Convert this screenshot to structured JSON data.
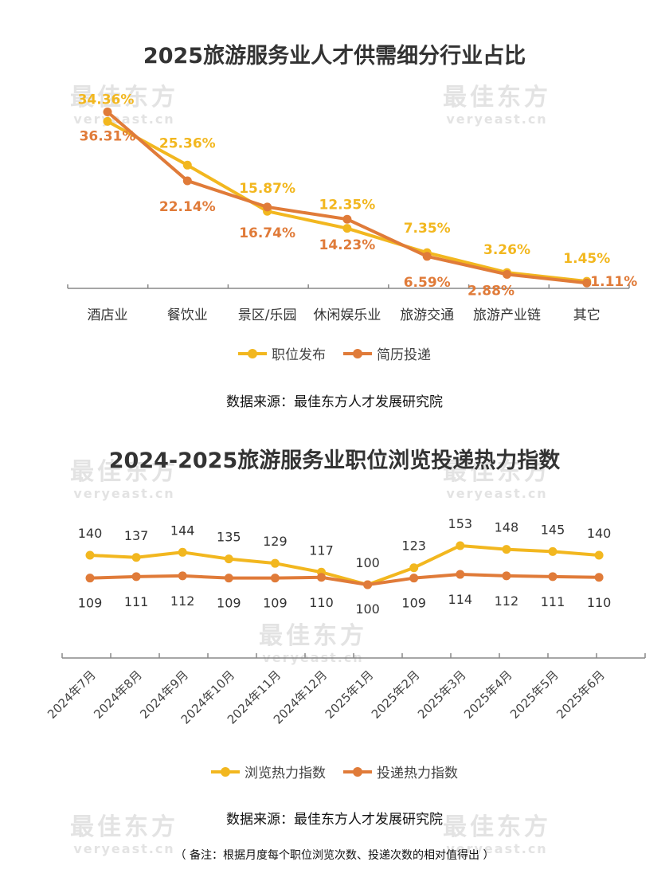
{
  "watermark": {
    "cn": "最佳东方",
    "en": "veryeast.cn"
  },
  "colors": {
    "job": "#F2B71F",
    "resume": "#E07B39",
    "axis": "#888888"
  },
  "chart_data": [
    {
      "type": "line",
      "title": "2025旅游服务业人才供需细分行业占比",
      "categories": [
        "酒店业",
        "餐饮业",
        "景区/乐园",
        "休闲娱乐业",
        "旅游交通",
        "旅游产业链",
        "其它"
      ],
      "series": [
        {
          "name": "职位发布",
          "values": [
            34.36,
            25.36,
            15.87,
            12.35,
            7.35,
            3.26,
            1.45
          ],
          "labels": [
            "34.36%",
            "25.36%",
            "15.87%",
            "12.35%",
            "7.35%",
            "3.26%",
            "1.45%"
          ]
        },
        {
          "name": "简历投递",
          "values": [
            36.31,
            22.14,
            16.74,
            14.23,
            6.59,
            2.88,
            1.11
          ],
          "labels": [
            "36.31%",
            "22.14%",
            "16.74%",
            "14.23%",
            "6.59%",
            "2.88%",
            "1.11%"
          ]
        }
      ],
      "ylim": [
        0,
        40
      ],
      "grid": false,
      "legend": "bottom",
      "source": "数据来源：最佳东方人才发展研究院"
    },
    {
      "type": "line",
      "title": "2024-2025旅游服务业职位浏览投递热力指数",
      "categories": [
        "2024年7月",
        "2024年8月",
        "2024年9月",
        "2024年10月",
        "2024年11月",
        "2024年12月",
        "2025年1月",
        "2025年2月",
        "2025年3月",
        "2025年4月",
        "2025年5月",
        "2025年6月"
      ],
      "series": [
        {
          "name": "浏览热力指数",
          "values": [
            140,
            137,
            144,
            135,
            129,
            117,
            100,
            123,
            153,
            148,
            145,
            140
          ]
        },
        {
          "name": "投递热力指数",
          "values": [
            109,
            111,
            112,
            109,
            109,
            110,
            100,
            109,
            114,
            112,
            111,
            110
          ]
        }
      ],
      "grid": false,
      "legend": "bottom",
      "source": "数据来源：最佳东方人才发展研究院",
      "note": "（ 备注：根据月度每个职位浏览次数、投递次数的相对值得出 ）"
    }
  ]
}
